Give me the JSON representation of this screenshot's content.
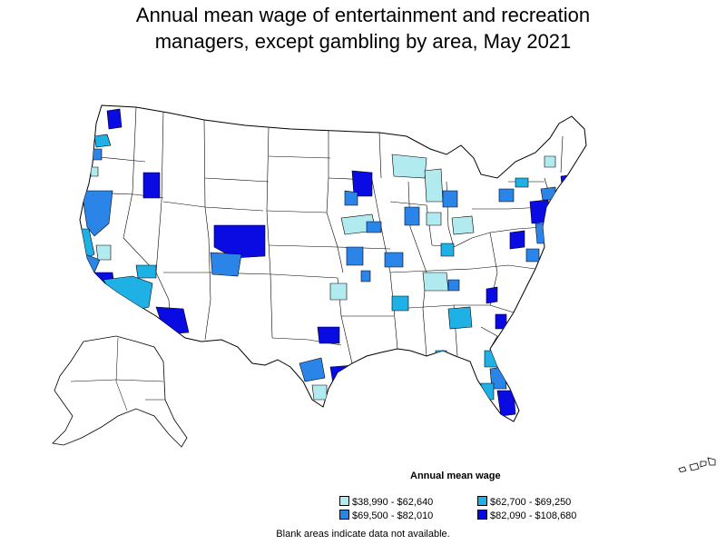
{
  "title": {
    "line1": "Annual mean wage of entertainment and recreation",
    "line2": "managers, except gambling by area, May 2021"
  },
  "legend": {
    "title": "Annual mean wage",
    "items": [
      {
        "label": "$38,990 - $62,640",
        "color": "#b2ebef"
      },
      {
        "label": "$62,700 - $69,250",
        "color": "#1fb1e6"
      },
      {
        "label": "$69,500 - $82,010",
        "color": "#2b85e9"
      },
      {
        "label": "$82,090 - $108,680",
        "color": "#0a0ae3"
      }
    ]
  },
  "footnote": "Blank areas indicate data not available.",
  "colors": {
    "outline": "#000000",
    "no_data": "#ffffff"
  }
}
